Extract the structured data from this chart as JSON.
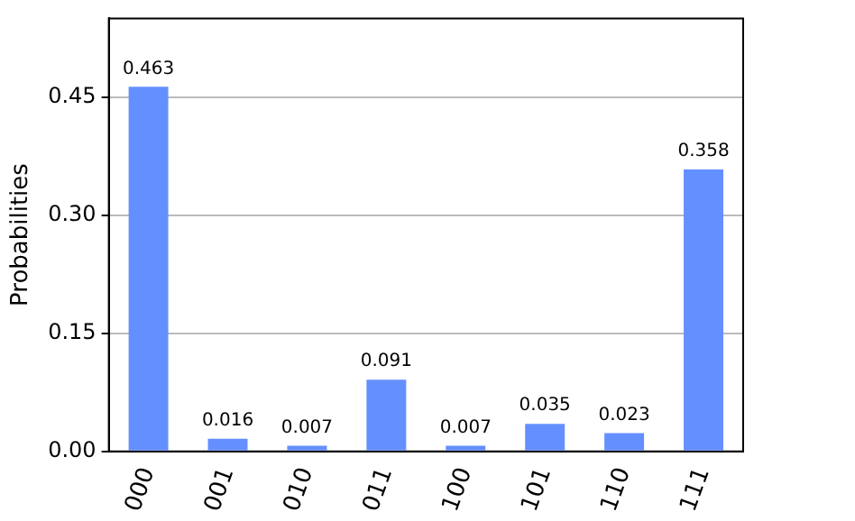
{
  "chart_data": {
    "type": "bar",
    "ylabel": "Probabilities",
    "categories": [
      "000",
      "001",
      "010",
      "011",
      "100",
      "101",
      "110",
      "111"
    ],
    "values": [
      0.463,
      0.016,
      0.007,
      0.091,
      0.007,
      0.035,
      0.023,
      0.358
    ],
    "color": "#648fff",
    "ylim": [
      0,
      0.55
    ],
    "yticks": [
      {
        "value": 0,
        "label": "0.00"
      },
      {
        "value": 0.15,
        "label": "0.15"
      },
      {
        "value": 0.3,
        "label": "0.30"
      },
      {
        "value": 0.45,
        "label": "0.45"
      }
    ],
    "grid": "y",
    "data_labels": true
  }
}
